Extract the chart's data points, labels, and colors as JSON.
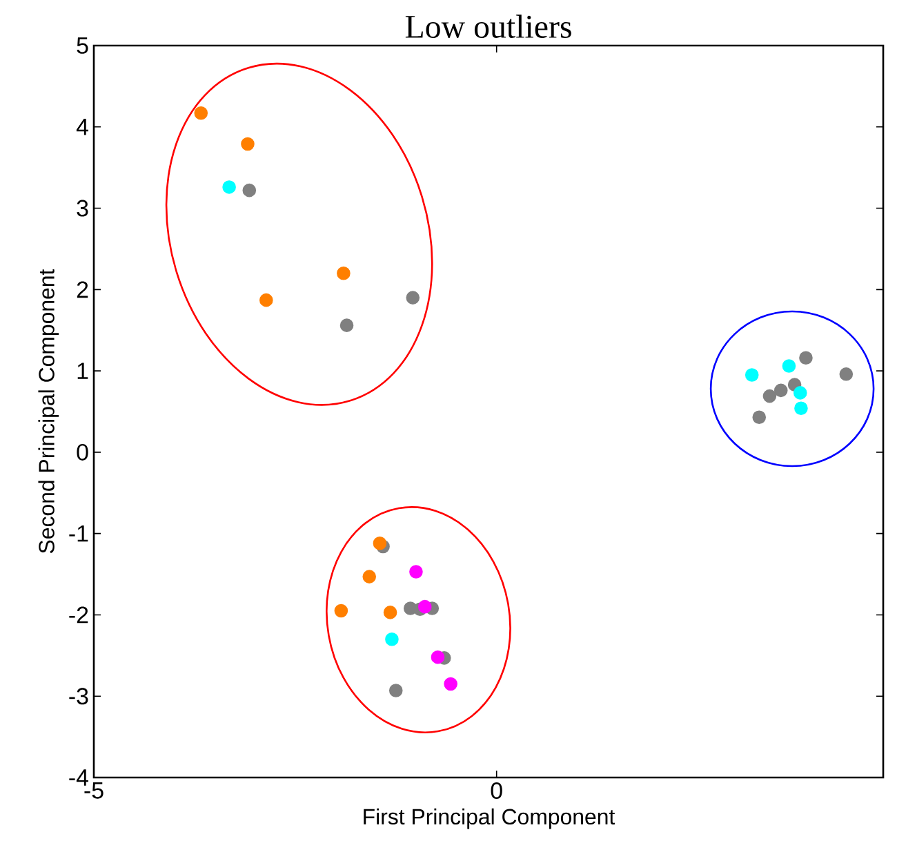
{
  "chart_data": {
    "type": "scatter",
    "title": "Low outliers",
    "xlabel": "First Principal Component",
    "ylabel": "Second Principal Component",
    "xlim": [
      -5,
      4.8
    ],
    "ylim": [
      -4,
      5
    ],
    "xticks": [
      -5,
      0
    ],
    "yticks": [
      -4,
      -3,
      -2,
      -1,
      0,
      1,
      2,
      3,
      4,
      5
    ],
    "marker": "circle",
    "legend": false,
    "grid": false,
    "series": [
      {
        "color": "#808080",
        "x": [
          -3.07,
          -1.04,
          -1.86,
          -1.41,
          -1.07,
          -0.95,
          -0.8,
          -0.65,
          -1.25,
          3.84,
          4.34,
          3.39,
          3.53,
          3.7,
          3.26
        ],
        "values": [
          3.22,
          1.9,
          1.56,
          -1.16,
          -1.92,
          -1.93,
          -1.92,
          -2.53,
          -2.93,
          1.16,
          0.96,
          0.69,
          0.76,
          0.83,
          0.43
        ]
      },
      {
        "color": "#00ffff",
        "x": [
          -3.32,
          -1.3,
          3.17,
          3.63,
          3.77,
          3.78
        ],
        "values": [
          3.26,
          -2.3,
          0.95,
          1.06,
          0.73,
          0.54
        ]
      },
      {
        "color": "#ff7f00",
        "x": [
          -3.67,
          -3.09,
          -1.9,
          -2.86,
          -1.45,
          -1.58,
          -1.93,
          -1.32
        ],
        "values": [
          4.17,
          3.79,
          2.2,
          1.87,
          -1.12,
          -1.53,
          -1.95,
          -1.97
        ]
      },
      {
        "color": "#ff00ff",
        "x": [
          -1.0,
          -0.89,
          -0.73,
          -0.57
        ],
        "values": [
          -1.47,
          -1.9,
          -2.52,
          -2.85
        ]
      }
    ]
  }
}
